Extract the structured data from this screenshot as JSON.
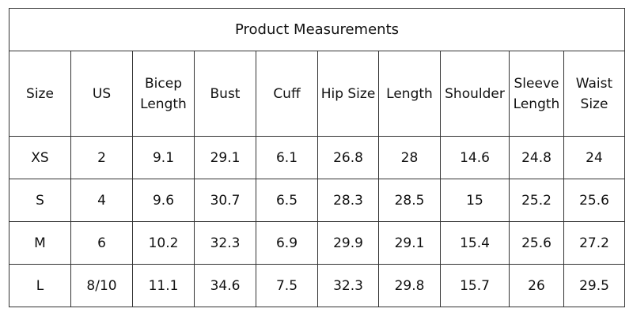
{
  "table": {
    "title": "Product Measurements",
    "columns": [
      "Size",
      "US",
      "Bicep Length",
      "Bust",
      "Cuff",
      "Hip Size",
      "Length",
      "Shoulder",
      "Sleeve Length",
      "Waist Size"
    ],
    "rows": [
      [
        "XS",
        2,
        9.1,
        29.1,
        6.1,
        26.8,
        28,
        14.6,
        24.8,
        24
      ],
      [
        "S",
        4,
        9.6,
        30.7,
        6.5,
        28.3,
        28.5,
        15,
        25.2,
        25.6
      ],
      [
        "M",
        6,
        10.2,
        32.3,
        6.9,
        29.9,
        29.1,
        15.4,
        25.6,
        27.2
      ],
      [
        "L",
        "8/10",
        11.1,
        34.6,
        7.5,
        32.3,
        29.8,
        15.7,
        26,
        29.5
      ]
    ]
  }
}
